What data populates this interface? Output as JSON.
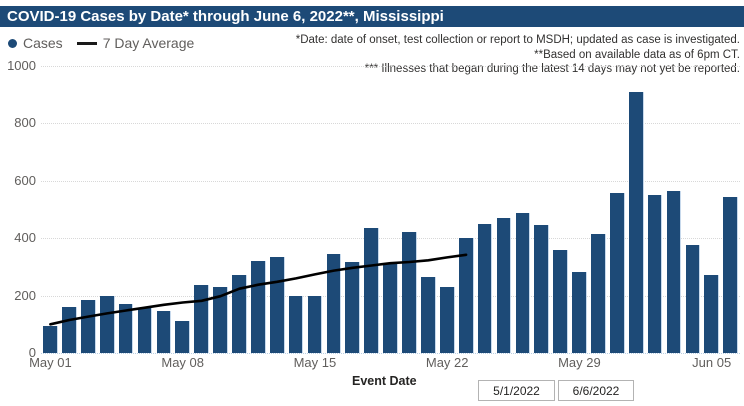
{
  "title": "COVID-19 Cases by Date* through June 6, 2022**, Mississippi",
  "legend": {
    "cases_label": "Cases",
    "avg_label": "7 Day Average"
  },
  "footnotes": [
    "*Date: date of onset, test collection or report to MSDH; updated as case is investigated.",
    "**Based on available data as of 6pm CT.",
    "*** Illnesses that began during the latest 14 days may not yet be reported."
  ],
  "event_date_label": "Event Date",
  "date_filters": {
    "start": "5/1/2022",
    "end": "6/6/2022"
  },
  "colors": {
    "navy": "#1d4a77",
    "grid": "#d8d8d8",
    "axis_text": "#605e5c",
    "avg_line": "#000000",
    "footnote_text": "#323130"
  },
  "chart_data": {
    "type": "combo (bar + line)",
    "title": "COVID-19 Cases by Date* through June 6, 2022**, Mississippi",
    "xlabel": "Event Date",
    "ylabel": "",
    "ylim": [
      0,
      1000
    ],
    "yticks": [
      0,
      200,
      400,
      600,
      800,
      1000
    ],
    "grid": "horizontal dotted",
    "legend_position": "top-left",
    "xtick_labels": [
      "May 01",
      "May 08",
      "May 15",
      "May 22",
      "May 29",
      "Jun 05"
    ],
    "xtick_indices": [
      0,
      7,
      14,
      21,
      28,
      35
    ],
    "categories": [
      "May 01",
      "May 02",
      "May 03",
      "May 04",
      "May 05",
      "May 06",
      "May 07",
      "May 08",
      "May 09",
      "May 10",
      "May 11",
      "May 12",
      "May 13",
      "May 14",
      "May 15",
      "May 16",
      "May 17",
      "May 18",
      "May 19",
      "May 20",
      "May 21",
      "May 22",
      "May 23",
      "May 24",
      "May 25",
      "May 26",
      "May 27",
      "May 28",
      "May 29",
      "May 30",
      "May 31",
      "Jun 01",
      "Jun 02",
      "Jun 03",
      "Jun 04",
      "Jun 05",
      "Jun 06"
    ],
    "series": [
      {
        "name": "Cases",
        "type": "bar",
        "values": [
          95,
          160,
          185,
          200,
          172,
          158,
          148,
          110,
          238,
          230,
          272,
          320,
          333,
          198,
          197,
          345,
          316,
          437,
          310,
          422,
          264,
          230,
          400,
          450,
          470,
          487,
          446,
          360,
          283,
          415,
          557,
          910,
          550,
          565,
          375,
          272,
          545
        ]
      },
      {
        "name": "7 Day Average",
        "type": "line",
        "note": "line ends at May 23 (latest 14 days not averaged)",
        "values": [
          100,
          115,
          127,
          138,
          148,
          158,
          168,
          176,
          182,
          198,
          224,
          238,
          248,
          260,
          274,
          287,
          297,
          305,
          313,
          317,
          323,
          333,
          342
        ]
      }
    ]
  }
}
